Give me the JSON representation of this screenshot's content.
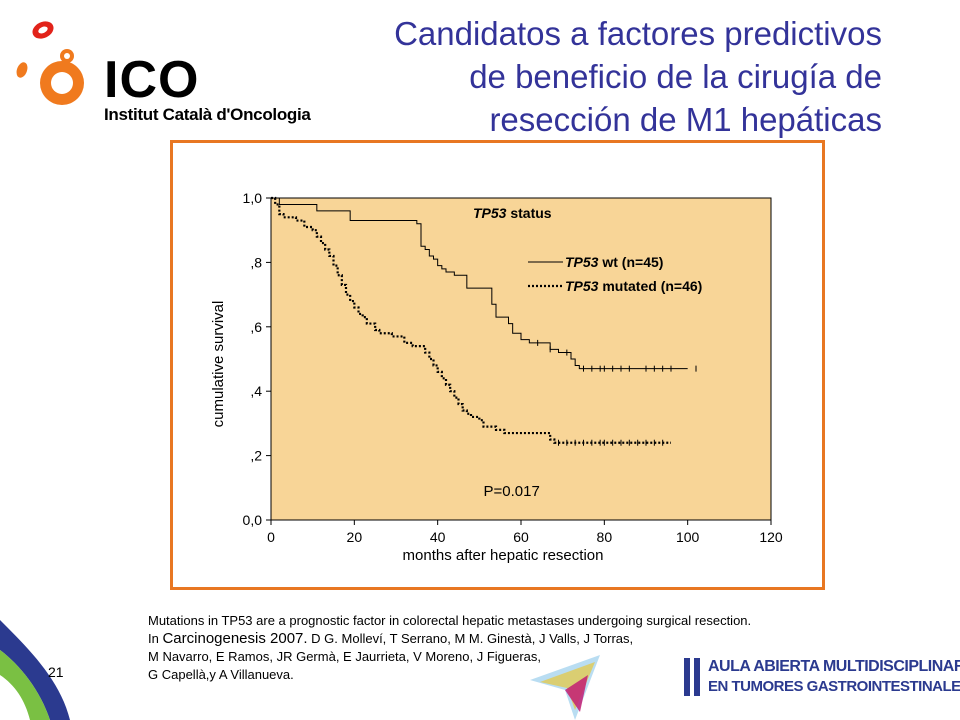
{
  "header": {
    "logo_name": "ICO",
    "logo_subtitle": "Institut Català d'Oncologia",
    "title_lines": [
      "Candidatos a factores predictivos",
      "de beneficio de la cirugía de",
      "resección de M1 hepáticas"
    ]
  },
  "colors": {
    "title": "#333399",
    "frame": "#e87722",
    "plot_bg": "#f8d597",
    "logo_orange": "#f07a1e",
    "logo_red": "#e2231a",
    "aula": "#2b3a8f"
  },
  "chart_data": {
    "type": "line",
    "subtype": "kaplan-meier",
    "xlabel": "months after hepatic resection",
    "ylabel": "cumulative survival",
    "xlim": [
      0,
      120
    ],
    "ylim": [
      0,
      1
    ],
    "x_ticks": [
      "0",
      "20",
      "40",
      "60",
      "80",
      "100",
      "120"
    ],
    "y_ticks": [
      "0,0",
      ",2",
      ",4",
      ",6",
      ",8",
      "1,0"
    ],
    "legend_title_italic": "TP53",
    "legend_title_rest": " status",
    "legend_placement": "top-right",
    "annotation": "P=0.017",
    "series": [
      {
        "name_italic": "TP53",
        "name_rest": " wt (n=45)",
        "style": "solid",
        "points": [
          [
            0,
            1.0
          ],
          [
            2,
            0.98
          ],
          [
            10,
            0.98
          ],
          [
            11,
            0.96
          ],
          [
            18,
            0.96
          ],
          [
            19,
            0.93
          ],
          [
            34,
            0.93
          ],
          [
            35,
            0.92
          ],
          [
            36,
            0.85
          ],
          [
            37,
            0.84
          ],
          [
            38,
            0.82
          ],
          [
            39,
            0.81
          ],
          [
            40,
            0.79
          ],
          [
            41,
            0.78
          ],
          [
            42,
            0.77
          ],
          [
            44,
            0.76
          ],
          [
            46,
            0.76
          ],
          [
            47,
            0.72
          ],
          [
            52,
            0.72
          ],
          [
            53,
            0.67
          ],
          [
            54,
            0.63
          ],
          [
            57,
            0.61
          ],
          [
            58,
            0.58
          ],
          [
            60,
            0.56
          ],
          [
            62,
            0.55
          ],
          [
            66,
            0.55
          ],
          [
            67,
            0.53
          ],
          [
            69,
            0.52
          ],
          [
            72,
            0.5
          ],
          [
            73,
            0.48
          ],
          [
            74,
            0.47
          ],
          [
            100,
            0.47
          ]
        ],
        "censor_x": [
          64,
          67,
          71,
          75,
          77,
          79,
          80,
          82,
          84,
          86,
          90,
          92,
          94,
          96,
          102
        ]
      },
      {
        "name_italic": "TP53",
        "name_rest": " mutated (n=46)",
        "style": "dotted",
        "points": [
          [
            0,
            1.0
          ],
          [
            1,
            0.98
          ],
          [
            2,
            0.95
          ],
          [
            3,
            0.94
          ],
          [
            6,
            0.93
          ],
          [
            8,
            0.91
          ],
          [
            10,
            0.9
          ],
          [
            11,
            0.88
          ],
          [
            12,
            0.86
          ],
          [
            13,
            0.84
          ],
          [
            14,
            0.82
          ],
          [
            15,
            0.79
          ],
          [
            16,
            0.76
          ],
          [
            17,
            0.73
          ],
          [
            18,
            0.7
          ],
          [
            19,
            0.68
          ],
          [
            20,
            0.66
          ],
          [
            21,
            0.64
          ],
          [
            22,
            0.63
          ],
          [
            23,
            0.61
          ],
          [
            25,
            0.59
          ],
          [
            26,
            0.58
          ],
          [
            28,
            0.58
          ],
          [
            29,
            0.57
          ],
          [
            31,
            0.57
          ],
          [
            32,
            0.55
          ],
          [
            34,
            0.54
          ],
          [
            36,
            0.54
          ],
          [
            37,
            0.52
          ],
          [
            38,
            0.5
          ],
          [
            39,
            0.48
          ],
          [
            40,
            0.46
          ],
          [
            41,
            0.44
          ],
          [
            42,
            0.42
          ],
          [
            43,
            0.4
          ],
          [
            44,
            0.38
          ],
          [
            45,
            0.36
          ],
          [
            46,
            0.34
          ],
          [
            47,
            0.33
          ],
          [
            48,
            0.32
          ],
          [
            50,
            0.31
          ],
          [
            51,
            0.29
          ],
          [
            54,
            0.28
          ],
          [
            56,
            0.27
          ],
          [
            66,
            0.27
          ],
          [
            67,
            0.25
          ],
          [
            68,
            0.24
          ],
          [
            96,
            0.24
          ]
        ],
        "censor_x": [
          69,
          71,
          73,
          75,
          77,
          79,
          80,
          82,
          84,
          86,
          88,
          90,
          92,
          94
        ]
      }
    ]
  },
  "citation": {
    "line1": "Mutations in TP53 are a prognostic factor in colorectal hepatic metastases undergoing surgical resection.",
    "line2_prefix": "In ",
    "line2_journal": "Carcinogenesis 2007.",
    "line2_rest": " D G. Mollеví, T Serrano, M M. Ginestà, J Valls, J Torras,",
    "line3": "M Navarro, E Ramos, JR Germà, E Jaurrieta, V Moreno, J Figueras,",
    "line4": "G Capellà,y A Villanueva."
  },
  "footer": {
    "page_number": "21",
    "aula_line1": "AULA ABIERTA MULTIDISCIPLINAR",
    "aula_line2": "EN TUMORES GASTROINTESTINALES"
  }
}
